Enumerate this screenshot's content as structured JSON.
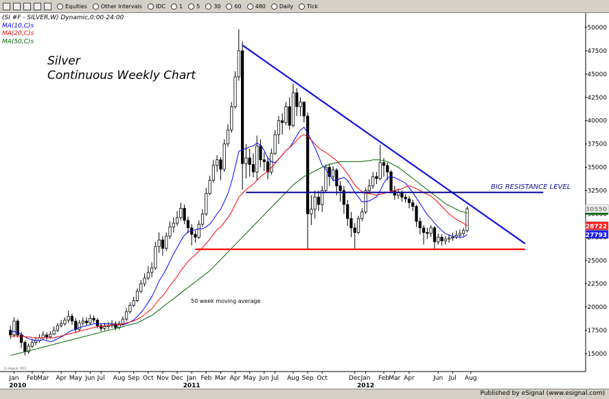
{
  "toolbar": {
    "items": [
      "Equities",
      "Other Intervals",
      "IDC",
      "1",
      "5",
      "30",
      "60",
      "480",
      "Daily",
      "Tick"
    ]
  },
  "footer": "Published by eSignal (www.esignal.com)",
  "watermark": "© eSignal, 2011",
  "chart_data": {
    "type": "candlestick",
    "title": "(SI #F - SILVER,W) Dynamic,0:00-24:00",
    "annotations": {
      "texts": [
        "Silver",
        "Continuous Weekly Chart",
        "BIG RESISTANCE LEVEL",
        "50 week moving average"
      ],
      "lines": [
        {
          "x": [
            64,
            142
          ],
          "y": [
            48100,
            26800
          ],
          "color": "#1010e0"
        },
        {
          "x": [
            65,
            147
          ],
          "y": [
            32300,
            32300
          ],
          "color": "#10109a"
        },
        {
          "x": [
            51,
            142
          ],
          "y": [
            26200,
            26200
          ],
          "color": "#ff0000"
        }
      ]
    },
    "up_color": "#ffffff",
    "down_color": "#000000",
    "open": [
      17500,
      17000,
      18500,
      17000,
      16200,
      15200,
      15800,
      16200,
      16400,
      16700,
      17000,
      16800,
      17100,
      17500,
      18000,
      18200,
      18600,
      19000,
      18500,
      17600,
      18300,
      18500,
      18300,
      18800,
      18600,
      18000,
      17700,
      17900,
      18000,
      18200,
      17800,
      18200,
      18700,
      19500,
      20200,
      20700,
      21700,
      22500,
      23100,
      23700,
      24200,
      26500,
      27200,
      26300,
      27600,
      28600,
      29000,
      29600,
      30600,
      29300,
      28500,
      27800,
      27500,
      28900,
      30000,
      32200,
      33600,
      35200,
      35800,
      34800,
      37500,
      39000,
      41500,
      44700,
      47500,
      35400,
      36000,
      35300,
      34500,
      37300,
      35800,
      35600,
      34500,
      36500,
      38500,
      40000,
      39800,
      41500,
      39500,
      43000,
      41500,
      42000,
      40500,
      30000,
      30500,
      31800,
      31000,
      32500,
      35000,
      34000,
      34700,
      33000,
      32500,
      31000,
      29500,
      28500,
      28000,
      29500,
      30200,
      32500,
      33000,
      34000,
      33800,
      35500,
      35200,
      34500,
      32500,
      32000,
      32300,
      31800,
      31600,
      31200,
      30800,
      29200,
      28500,
      28000,
      27900,
      28500,
      27000,
      27500,
      27100,
      27300,
      27400,
      27500,
      27700,
      27900,
      28200
    ],
    "high": [
      18000,
      18900,
      18700,
      17300,
      16400,
      16100,
      16500,
      16800,
      17100,
      17400,
      17300,
      17400,
      17900,
      18300,
      18600,
      18900,
      19600,
      19300,
      18800,
      18600,
      18900,
      18900,
      19200,
      19100,
      18800,
      18200,
      18300,
      18400,
      18600,
      18500,
      18500,
      19000,
      19900,
      20500,
      21100,
      22000,
      22900,
      23600,
      24400,
      24800,
      27000,
      28000,
      27600,
      28000,
      29200,
      29600,
      30300,
      31200,
      31000,
      29700,
      28900,
      28200,
      29300,
      30500,
      32800,
      34100,
      35800,
      36300,
      36100,
      38000,
      39600,
      42000,
      45300,
      49800,
      48500,
      37500,
      37000,
      36500,
      38400,
      38000,
      36600,
      36000,
      37000,
      39000,
      40500,
      40800,
      42000,
      42500,
      44000,
      43500,
      42500,
      42000,
      40900,
      32000,
      32500,
      32500,
      33000,
      35300,
      35400,
      35100,
      34900,
      33500,
      33000,
      31500,
      30200,
      29000,
      29800,
      30600,
      32800,
      33700,
      34500,
      34500,
      37400,
      36000,
      35500,
      34700,
      33000,
      32700,
      32500,
      32100,
      31900,
      31500,
      31000,
      29600,
      28800,
      28500,
      28800,
      28700,
      27900,
      27800,
      27600,
      27800,
      28000,
      28200,
      28300,
      28500,
      30800
    ],
    "low": [
      16600,
      16800,
      16700,
      15600,
      14800,
      15000,
      15600,
      15900,
      16200,
      16500,
      16500,
      16600,
      17000,
      17300,
      17800,
      18000,
      18300,
      18100,
      17200,
      17400,
      18000,
      18000,
      18100,
      18300,
      17700,
      17400,
      17500,
      17600,
      17800,
      17500,
      17600,
      18000,
      18500,
      19300,
      20000,
      20500,
      21500,
      22200,
      22900,
      23200,
      24000,
      25800,
      25500,
      26000,
      27300,
      28000,
      28700,
      29300,
      28900,
      27900,
      26600,
      26900,
      27300,
      28600,
      29800,
      32000,
      33300,
      34500,
      33600,
      34500,
      37200,
      38700,
      41300,
      44300,
      32600,
      33800,
      34000,
      33900,
      33600,
      35000,
      34600,
      33700,
      34200,
      36300,
      37500,
      38500,
      39500,
      39000,
      39300,
      40500,
      40500,
      39800,
      26200,
      28800,
      29500,
      30300,
      30200,
      32300,
      33000,
      33500,
      32000,
      31300,
      30000,
      28700,
      27500,
      26300,
      27800,
      29200,
      30000,
      32100,
      32700,
      33200,
      33600,
      34000,
      33600,
      32200,
      31500,
      31600,
      31300,
      31200,
      30600,
      30300,
      28600,
      27800,
      26700,
      27300,
      27500,
      26100,
      26700,
      26600,
      26700,
      26900,
      27100,
      27300,
      27400,
      27600,
      28000
    ],
    "close": [
      17000,
      18500,
      17000,
      16200,
      15200,
      15800,
      16200,
      16400,
      16700,
      17000,
      16800,
      17100,
      17500,
      18000,
      18200,
      18600,
      19000,
      18500,
      17600,
      18300,
      18500,
      18300,
      18800,
      18600,
      18000,
      17700,
      17900,
      18000,
      18200,
      17800,
      18200,
      18700,
      19500,
      20200,
      20700,
      21700,
      22500,
      23100,
      23700,
      24200,
      26500,
      27200,
      26300,
      27600,
      28600,
      29000,
      29600,
      30600,
      29300,
      28500,
      27800,
      27500,
      28900,
      30000,
      32200,
      33600,
      35200,
      35800,
      34800,
      37500,
      39000,
      41500,
      44700,
      47500,
      35400,
      36000,
      35300,
      34500,
      37300,
      35800,
      35600,
      34500,
      36500,
      38500,
      40000,
      39800,
      41500,
      39500,
      43000,
      41500,
      42000,
      40500,
      30000,
      30500,
      31800,
      31000,
      32500,
      35000,
      34000,
      34700,
      33000,
      32500,
      31000,
      29500,
      28500,
      28000,
      29500,
      30200,
      32500,
      33000,
      34000,
      33800,
      35500,
      35200,
      34500,
      32500,
      32000,
      32300,
      31800,
      31600,
      31200,
      30800,
      29200,
      28500,
      28000,
      27900,
      28500,
      27000,
      27500,
      27100,
      27300,
      27400,
      27500,
      27700,
      27900,
      28200,
      30550
    ],
    "series": [
      {
        "name": "MA(10,C)s",
        "color": "#0000ff",
        "values": [
          17300,
          17400,
          17300,
          17100,
          16800,
          16600,
          16500,
          16400,
          16400,
          16500,
          16400,
          16300,
          16400,
          16600,
          16800,
          17000,
          17300,
          17500,
          17600,
          17800,
          17900,
          18000,
          18100,
          18200,
          18200,
          18200,
          18200,
          18200,
          18200,
          18100,
          18100,
          18100,
          18200,
          18400,
          18600,
          19000,
          19400,
          19900,
          20500,
          21100,
          21900,
          22800,
          23400,
          24100,
          24900,
          25700,
          26400,
          27100,
          27700,
          28100,
          28200,
          28300,
          28400,
          28400,
          28600,
          28900,
          29400,
          30000,
          30500,
          31300,
          32200,
          33400,
          35000,
          36700,
          36900,
          37000,
          37200,
          37300,
          37600,
          37400,
          36800,
          36000,
          35600,
          35500,
          35900,
          36300,
          36800,
          37100,
          37700,
          38400,
          39000,
          39300,
          38700,
          37900,
          37100,
          36200,
          35200,
          34800,
          34200,
          33600,
          33600,
          33800,
          33900,
          33600,
          33000,
          32300,
          31800,
          31300,
          31300,
          31400,
          31600,
          31800,
          32500,
          33300,
          33900,
          34000,
          33900,
          33700,
          33500,
          33300,
          32800,
          32300,
          31700,
          31100,
          30500,
          29900,
          29500,
          29000,
          28600,
          28200,
          27900,
          27700,
          27600,
          27500,
          27500,
          27500,
          27793
        ]
      },
      {
        "name": "MA(20,C)s",
        "color": "#ff0000",
        "values": [
          16800,
          16900,
          16900,
          16900,
          16800,
          16800,
          16700,
          16700,
          16700,
          16700,
          16700,
          16700,
          16700,
          16800,
          16900,
          17000,
          17100,
          17200,
          17300,
          17400,
          17500,
          17600,
          17700,
          17800,
          17900,
          17900,
          18000,
          18000,
          18100,
          18100,
          18100,
          18200,
          18300,
          18400,
          18500,
          18700,
          18900,
          19200,
          19500,
          19800,
          20300,
          20800,
          21200,
          21700,
          22300,
          22800,
          23300,
          23900,
          24400,
          24900,
          25300,
          25600,
          26000,
          26400,
          26800,
          27300,
          27800,
          28300,
          28600,
          29100,
          29600,
          30200,
          31000,
          31800,
          32200,
          32600,
          32900,
          33200,
          33600,
          34000,
          34300,
          34600,
          35000,
          35400,
          35900,
          36300,
          36800,
          37100,
          37500,
          37900,
          38300,
          38500,
          38300,
          37900,
          37500,
          37100,
          36800,
          36600,
          36300,
          36000,
          35700,
          35300,
          34800,
          34300,
          33700,
          33100,
          32700,
          32400,
          32200,
          32200,
          32100,
          32000,
          32100,
          32200,
          32300,
          32400,
          32500,
          32600,
          32700,
          32900,
          33000,
          32900,
          32700,
          32500,
          32300,
          32100,
          31900,
          31600,
          31200,
          30800,
          30400,
          30000,
          29700,
          29400,
          29200,
          29000,
          28722
        ]
      },
      {
        "name": "MA(50,C)s",
        "color": "#006400",
        "values": [
          14800,
          14900,
          15000,
          15100,
          15200,
          15300,
          15400,
          15500,
          15600,
          15700,
          15800,
          15900,
          16000,
          16100,
          16200,
          16300,
          16400,
          16500,
          16600,
          16700,
          16800,
          16900,
          17000,
          17100,
          17200,
          17300,
          17400,
          17500,
          17600,
          17700,
          17800,
          17900,
          18000,
          18100,
          18200,
          18300,
          18500,
          18700,
          18900,
          19100,
          19400,
          19700,
          20000,
          20300,
          20600,
          20900,
          21200,
          21500,
          21800,
          22100,
          22400,
          22700,
          23000,
          23300,
          23600,
          23900,
          24300,
          24700,
          25100,
          25500,
          25900,
          26300,
          26700,
          27100,
          27500,
          27900,
          28300,
          28700,
          29100,
          29500,
          29900,
          30300,
          30700,
          31100,
          31500,
          31900,
          32300,
          32700,
          33100,
          33400,
          33700,
          34000,
          34200,
          34400,
          34600,
          34800,
          35000,
          35200,
          35300,
          35400,
          35500,
          35600,
          35600,
          35600,
          35600,
          35600,
          35600,
          35600,
          35700,
          35700,
          35800,
          35800,
          35800,
          35700,
          35600,
          35400,
          35200,
          35000,
          34700,
          34400,
          34100,
          33800,
          33500,
          33200,
          32900,
          32600,
          32300,
          32000,
          31700,
          31400,
          31100,
          30900,
          30700,
          30500,
          30300,
          30200,
          30066
        ]
      }
    ],
    "price_boxes": [
      {
        "series": 0,
        "color": "#1a1aff"
      },
      {
        "series": 1,
        "color": "#ff2020"
      }
    ],
    "ylim": [
      13080,
      50740
    ],
    "yticks": [
      15000,
      17500,
      20000,
      22500,
      25000,
      27500,
      30000,
      32500,
      35000,
      37500,
      40000,
      42500,
      45000,
      47500,
      50000
    ],
    "xlim": [
      -2.5,
      158.5
    ],
    "xticks": [
      {
        "value": 1,
        "label": "Jan"
      },
      {
        "value": 6,
        "label": "Feb"
      },
      {
        "value": 9,
        "label": "Mar"
      },
      {
        "value": 14,
        "label": "Apr"
      },
      {
        "value": 18,
        "label": "May"
      },
      {
        "value": 22,
        "label": "Jun"
      },
      {
        "value": 25,
        "label": "Jul"
      },
      {
        "value": 30,
        "label": "Aug"
      },
      {
        "value": 34,
        "label": "Sep"
      },
      {
        "value": 38,
        "label": "Oct"
      },
      {
        "value": 42,
        "label": "Nov"
      },
      {
        "value": 46,
        "label": "Dec"
      },
      {
        "value": 50,
        "label": "Jan"
      },
      {
        "value": 54,
        "label": "Feb"
      },
      {
        "value": 58,
        "label": "Mar"
      },
      {
        "value": 62,
        "label": "Apr"
      },
      {
        "value": 66,
        "label": "May"
      },
      {
        "value": 70,
        "label": "Jun"
      },
      {
        "value": 73,
        "label": "Jul"
      },
      {
        "value": 78,
        "label": "Aug"
      },
      {
        "value": 82,
        "label": "Sep"
      },
      {
        "value": 86,
        "label": "Oct"
      },
      {
        "value": 95,
        "label": "Dec"
      },
      {
        "value": 98,
        "label": "Jan"
      },
      {
        "value": 103,
        "label": "Feb"
      },
      {
        "value": 106,
        "label": "Mar"
      },
      {
        "value": 110,
        "label": "Apr"
      },
      {
        "value": 118,
        "label": "Jun"
      },
      {
        "value": 122,
        "label": "Jul"
      },
      {
        "value": 127,
        "label": "Aug"
      }
    ],
    "year_ticks": [
      {
        "value": 2,
        "label": "2010"
      },
      {
        "value": 50,
        "label": "2011"
      },
      {
        "value": 98,
        "label": "2012"
      }
    ],
    "grid": false
  }
}
